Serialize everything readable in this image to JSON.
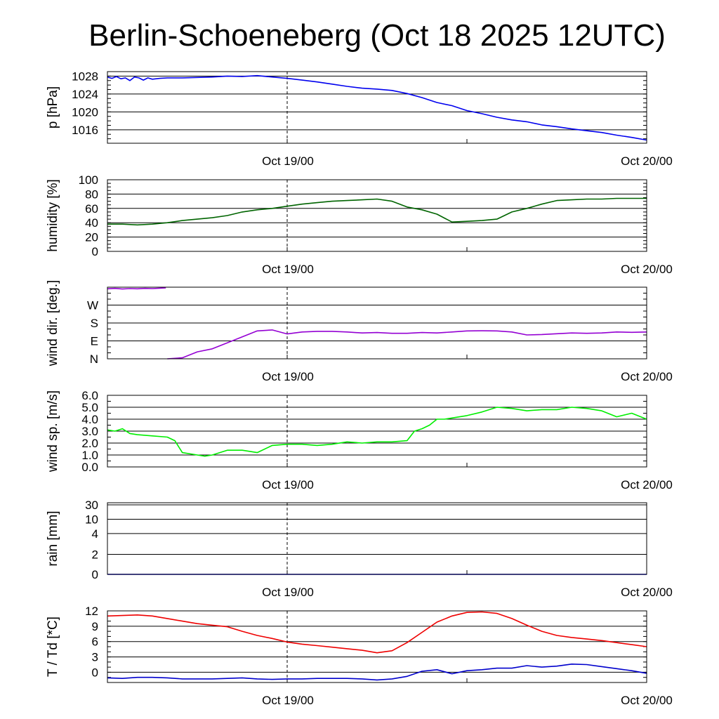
{
  "header": {
    "title": "Berlin-Schoeneberg (Oct 18 2025 12UTC)"
  },
  "x_tick_labels": [
    "Oct 19/00",
    "Oct 20/00"
  ],
  "colors": {
    "pressure": "#0000ee",
    "humidity": "#006400",
    "wind_dir": "#9400d3",
    "wind_speed": "#00ee00",
    "rain": "#0000ee",
    "temperature": "#ee0000",
    "dewpoint": "#0000cc"
  },
  "chart_data": [
    {
      "id": "pressure",
      "type": "line",
      "ylabel": "p [hPa]",
      "ylim": [
        1013,
        1029
      ],
      "yticks": [
        1016,
        1020,
        1024,
        1028
      ],
      "ytick_labels": [
        "1016",
        "1020",
        "1024",
        "1028"
      ],
      "grid_values": [
        1016,
        1020,
        1024,
        1028
      ],
      "minor_step": 1,
      "xlim": [
        0,
        36
      ],
      "vline": 12,
      "series": [
        {
          "name": "pressure",
          "color": "#0000ee",
          "x": [
            0,
            0.3,
            0.6,
            0.9,
            1.2,
            1.5,
            1.8,
            2.1,
            2.4,
            2.7,
            3.0,
            3.5,
            4,
            5,
            6,
            7,
            8,
            9,
            10,
            11,
            12,
            13,
            14,
            15,
            16,
            17,
            18,
            19,
            20,
            21,
            22,
            23,
            24,
            25,
            26,
            27,
            28,
            29,
            30,
            31,
            32,
            33,
            34,
            35,
            36
          ],
          "y": [
            1027.8,
            1027.5,
            1027.9,
            1027.4,
            1027.6,
            1027.0,
            1027.8,
            1027.6,
            1027.1,
            1027.6,
            1027.3,
            1027.5,
            1027.6,
            1027.6,
            1027.7,
            1027.8,
            1028.0,
            1027.9,
            1028.1,
            1027.8,
            1027.5,
            1027.1,
            1026.7,
            1026.2,
            1025.7,
            1025.3,
            1025.1,
            1024.8,
            1024.1,
            1023.2,
            1022.1,
            1021.4,
            1020.3,
            1019.6,
            1018.8,
            1018.2,
            1017.8,
            1017.1,
            1016.7,
            1016.2,
            1015.8,
            1015.4,
            1014.8,
            1014.3,
            1013.7
          ]
        }
      ]
    },
    {
      "id": "humidity",
      "type": "line",
      "ylabel": "humidity [%]",
      "ylim": [
        0,
        100
      ],
      "yticks": [
        0,
        20,
        40,
        60,
        80,
        100
      ],
      "ytick_labels": [
        "0",
        "20",
        "40",
        "60",
        "80",
        "100"
      ],
      "grid_values": [
        20,
        40,
        60,
        80
      ],
      "minor_step": 5,
      "xlim": [
        0,
        36
      ],
      "vline": 12,
      "series": [
        {
          "name": "humidity",
          "color": "#006400",
          "x": [
            0,
            1,
            2,
            3,
            4,
            5,
            6,
            7,
            8,
            9,
            10,
            11,
            12,
            13,
            14,
            15,
            16,
            17,
            18,
            19,
            20,
            21,
            22,
            23,
            24,
            25,
            26,
            27,
            28,
            29,
            30,
            31,
            32,
            33,
            34,
            35,
            36
          ],
          "y": [
            38,
            38,
            37,
            38,
            40,
            43,
            45,
            47,
            50,
            55,
            58,
            60,
            63,
            66,
            68,
            70,
            71,
            72,
            73,
            70,
            62,
            58,
            52,
            41,
            42,
            43,
            45,
            55,
            60,
            66,
            71,
            72,
            73,
            73,
            74,
            74,
            74
          ]
        }
      ]
    },
    {
      "id": "wind_dir",
      "type": "line",
      "ylabel": "wind dir. [deg.]",
      "ylim": [
        0,
        360
      ],
      "yticks": [
        0,
        90,
        180,
        270
      ],
      "ytick_labels": [
        "N",
        "E",
        "S",
        "W"
      ],
      "grid_values": [
        90,
        180,
        270
      ],
      "minor_step": 30,
      "xlim": [
        0,
        36
      ],
      "vline": 12,
      "series": [
        {
          "name": "wind direction",
          "color": "#9400d3",
          "x": [
            0,
            0.5,
            1,
            1.5,
            2,
            2.5,
            3,
            3.5,
            3.9,
            3.9,
            4,
            5,
            6,
            7,
            8,
            9,
            10,
            11,
            12,
            13,
            14,
            15,
            16,
            17,
            18,
            19,
            20,
            21,
            22,
            23,
            24,
            25,
            26,
            27,
            28,
            29,
            30,
            31,
            32,
            33,
            34,
            35,
            36
          ],
          "y": [
            352,
            354,
            351,
            353,
            352,
            354,
            353,
            355,
            357,
            null,
            0,
            5,
            35,
            50,
            80,
            110,
            140,
            145,
            125,
            135,
            138,
            138,
            135,
            130,
            132,
            128,
            128,
            132,
            130,
            135,
            140,
            141,
            140,
            135,
            120,
            122,
            126,
            130,
            128,
            130,
            135,
            133,
            135
          ]
        }
      ]
    },
    {
      "id": "wind_speed",
      "type": "line",
      "ylabel": "wind sp. [m/s]",
      "ylim": [
        0,
        6
      ],
      "yticks": [
        0,
        1,
        2,
        3,
        4,
        5,
        6
      ],
      "ytick_labels": [
        "0.0",
        "1.0",
        "2.0",
        "3.0",
        "4.0",
        "5.0",
        "6.0"
      ],
      "grid_values": [
        1,
        2,
        3,
        4,
        5
      ],
      "minor_step": 0.5,
      "xlim": [
        0,
        36
      ],
      "vline": 12,
      "series": [
        {
          "name": "wind speed",
          "color": "#00ee00",
          "x": [
            0,
            0.5,
            1,
            1.5,
            2,
            3,
            4,
            4.5,
            5,
            6,
            6.5,
            7,
            8,
            9,
            10,
            11,
            12,
            13,
            14,
            15,
            16,
            17,
            18,
            19,
            20,
            20.5,
            21,
            21.5,
            22,
            22.5,
            23,
            24,
            25,
            26,
            27,
            28,
            29,
            30,
            31,
            32,
            33,
            34,
            35,
            36
          ],
          "y": [
            3.1,
            3.0,
            3.2,
            2.8,
            2.7,
            2.6,
            2.5,
            2.2,
            1.2,
            1.0,
            0.9,
            1.0,
            1.4,
            1.4,
            1.2,
            1.8,
            1.9,
            1.9,
            1.8,
            1.9,
            2.1,
            2.0,
            2.1,
            2.1,
            2.2,
            3.0,
            3.2,
            3.5,
            4.0,
            4.0,
            4.1,
            4.3,
            4.6,
            5.0,
            4.9,
            4.7,
            4.8,
            4.8,
            5.0,
            4.9,
            4.7,
            4.2,
            4.5,
            4.0
          ]
        }
      ]
    },
    {
      "id": "rain",
      "type": "line",
      "ylabel": "rain [mm]",
      "ylim": [
        0,
        30
      ],
      "yticks": [
        0,
        2,
        4,
        10,
        30
      ],
      "ytick_labels": [
        "0",
        "2",
        "4",
        "10",
        "30"
      ],
      "grid_values": [
        2,
        4,
        10,
        30
      ],
      "minor_step": null,
      "xlim": [
        0,
        36
      ],
      "vline": 12,
      "series": [
        {
          "name": "rain",
          "color": "#0000ee",
          "x": [
            0,
            36
          ],
          "y": [
            0,
            0
          ]
        }
      ]
    },
    {
      "id": "temperature",
      "type": "line",
      "ylabel": "T / Td [*C]",
      "ylim": [
        -2,
        12
      ],
      "yticks": [
        0,
        3,
        6,
        9,
        12
      ],
      "ytick_labels": [
        "0",
        "3",
        "6",
        "9",
        "12"
      ],
      "grid_values": [
        0,
        3,
        6,
        9
      ],
      "minor_step": 1,
      "xlim": [
        0,
        36
      ],
      "vline": 12,
      "series": [
        {
          "name": "T",
          "color": "#ee0000",
          "x": [
            0,
            1,
            2,
            3,
            4,
            5,
            6,
            7,
            8,
            9,
            10,
            11,
            12,
            13,
            14,
            15,
            16,
            17,
            18,
            19,
            20,
            21,
            22,
            23,
            24,
            25,
            26,
            27,
            28,
            29,
            30,
            31,
            32,
            33,
            34,
            35,
            36
          ],
          "y": [
            11.0,
            11.1,
            11.2,
            11.0,
            10.5,
            10.0,
            9.5,
            9.2,
            8.9,
            8.0,
            7.2,
            6.6,
            5.9,
            5.5,
            5.2,
            4.9,
            4.6,
            4.3,
            3.8,
            4.2,
            5.8,
            7.8,
            9.8,
            11.0,
            11.7,
            11.8,
            11.5,
            10.5,
            9.2,
            8.0,
            7.2,
            6.8,
            6.5,
            6.2,
            5.8,
            5.4,
            5.0
          ]
        },
        {
          "name": "Td",
          "color": "#0000cc",
          "x": [
            0,
            1,
            2,
            3,
            4,
            5,
            6,
            7,
            8,
            9,
            10,
            11,
            12,
            13,
            14,
            15,
            16,
            17,
            18,
            19,
            20,
            21,
            22,
            23,
            24,
            25,
            26,
            27,
            28,
            29,
            30,
            31,
            32,
            33,
            34,
            35,
            36
          ],
          "y": [
            -1.1,
            -1.2,
            -1.0,
            -1.0,
            -1.1,
            -1.3,
            -1.3,
            -1.3,
            -1.2,
            -1.1,
            -1.3,
            -1.4,
            -1.3,
            -1.3,
            -1.2,
            -1.2,
            -1.2,
            -1.3,
            -1.5,
            -1.3,
            -0.8,
            0.2,
            0.5,
            -0.3,
            0.3,
            0.5,
            0.8,
            0.8,
            1.3,
            1.0,
            1.2,
            1.6,
            1.5,
            1.1,
            0.7,
            0.3,
            -0.2
          ]
        }
      ]
    }
  ]
}
